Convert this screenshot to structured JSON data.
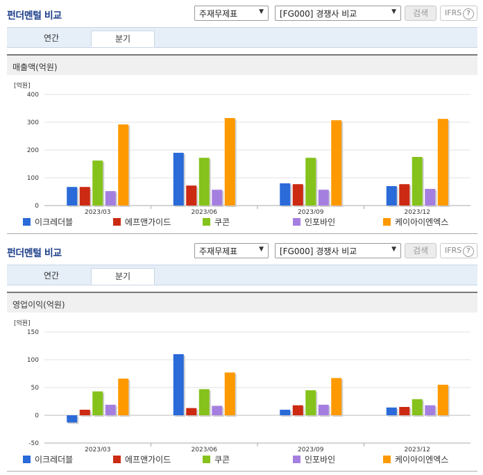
{
  "panels": [
    {
      "title": "펀더멘털 비교",
      "select_type": "주재무제표",
      "select_comp": "[FG000] 경쟁사 비교",
      "search_label": "검색",
      "ifrs_label": "IFRS",
      "tabs": [
        "연간",
        "분기"
      ],
      "active_tab": 1,
      "metric_label": "매출액(억원)",
      "unit_label": "[억원]"
    },
    {
      "title": "펀더멘털 비교",
      "select_type": "주재무제표",
      "select_comp": "[FG000] 경쟁사 비교",
      "search_label": "검색",
      "ifrs_label": "IFRS",
      "tabs": [
        "연간",
        "분기"
      ],
      "active_tab": 1,
      "metric_label": "영업이익(억원)",
      "unit_label": "[억원]"
    }
  ],
  "colors": [
    "#2a6ad9",
    "#cc2a12",
    "#85c21c",
    "#a57fe0",
    "#ff9900"
  ],
  "chart_data": [
    {
      "type": "bar",
      "title": "매출액(억원)",
      "categories": [
        "2023/03",
        "2023/06",
        "2023/09",
        "2023/12"
      ],
      "series": [
        {
          "name": "이크레더블",
          "values": [
            67,
            190,
            80,
            70
          ]
        },
        {
          "name": "에프앤가이드",
          "values": [
            67,
            72,
            77,
            77
          ]
        },
        {
          "name": "쿠콘",
          "values": [
            162,
            172,
            172,
            175
          ]
        },
        {
          "name": "인포바인",
          "values": [
            52,
            57,
            57,
            60
          ]
        },
        {
          "name": "케이아이엔엑스",
          "values": [
            292,
            315,
            307,
            312
          ]
        }
      ],
      "ylim": [
        0,
        400
      ],
      "yticks": [
        0,
        100,
        200,
        300,
        400
      ],
      "ylabel": "[억원]",
      "legend": "bottom",
      "grid": true
    },
    {
      "type": "bar",
      "title": "영업이익(억원)",
      "categories": [
        "2023/03",
        "2023/06",
        "2023/09",
        "2023/12"
      ],
      "series": [
        {
          "name": "이크레더블",
          "values": [
            -13,
            110,
            10,
            14
          ]
        },
        {
          "name": "에프앤가이드",
          "values": [
            10,
            13,
            18,
            15
          ]
        },
        {
          "name": "쿠콘",
          "values": [
            43,
            47,
            45,
            29
          ]
        },
        {
          "name": "인포바인",
          "values": [
            19,
            17,
            19,
            18
          ]
        },
        {
          "name": "케이아이엔엑스",
          "values": [
            66,
            77,
            67,
            55
          ]
        }
      ],
      "ylim": [
        -50,
        150
      ],
      "yticks": [
        -50,
        0,
        50,
        100,
        150
      ],
      "ylabel": "[억원]",
      "legend": "bottom",
      "grid": true
    }
  ]
}
